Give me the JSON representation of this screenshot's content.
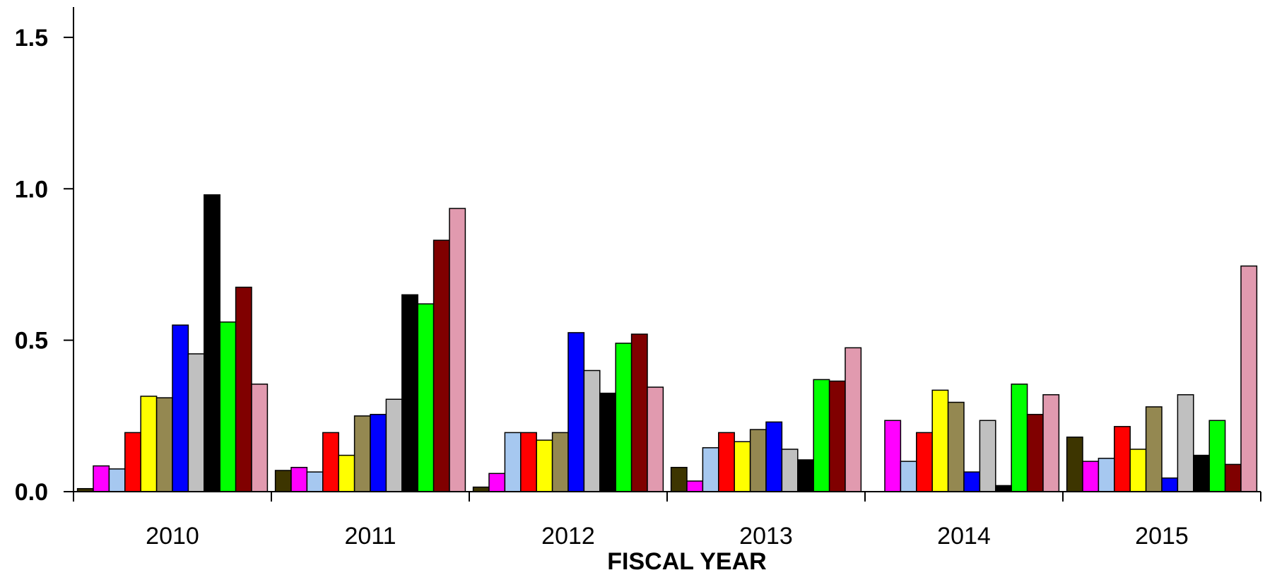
{
  "chart_data": {
    "type": "bar",
    "title": "",
    "xlabel": "FISCAL YEAR",
    "ylabel": "",
    "ylim": [
      0,
      1.6
    ],
    "yticks": [
      {
        "value": 0.0,
        "label": "0.0"
      },
      {
        "value": 0.5,
        "label": "0.5"
      },
      {
        "value": 1.0,
        "label": "1.0"
      },
      {
        "value": 1.5,
        "label": "1.5"
      }
    ],
    "grid": false,
    "legend": "none",
    "categories": [
      "2010",
      "2011",
      "2012",
      "2013",
      "2014",
      "2015"
    ],
    "series": [
      {
        "color": "#3d3500",
        "values": [
          0.01,
          0.07,
          0.015,
          0.08,
          0.0,
          0.18
        ]
      },
      {
        "color": "#ff00ff",
        "values": [
          0.085,
          0.08,
          0.06,
          0.035,
          0.235,
          0.1
        ]
      },
      {
        "color": "#a6c8f0",
        "values": [
          0.075,
          0.065,
          0.195,
          0.145,
          0.1,
          0.11
        ]
      },
      {
        "color": "#ff0000",
        "values": [
          0.195,
          0.195,
          0.195,
          0.195,
          0.195,
          0.215
        ]
      },
      {
        "color": "#ffff00",
        "values": [
          0.315,
          0.12,
          0.17,
          0.165,
          0.335,
          0.14
        ]
      },
      {
        "color": "#948851",
        "values": [
          0.31,
          0.25,
          0.195,
          0.205,
          0.295,
          0.28
        ]
      },
      {
        "color": "#0000ff",
        "values": [
          0.55,
          0.255,
          0.525,
          0.23,
          0.065,
          0.045
        ]
      },
      {
        "color": "#c0c0c0",
        "values": [
          0.455,
          0.305,
          0.4,
          0.14,
          0.235,
          0.32
        ]
      },
      {
        "color": "#000000",
        "values": [
          0.98,
          0.65,
          0.325,
          0.105,
          0.02,
          0.12
        ]
      },
      {
        "color": "#00ff00",
        "values": [
          0.56,
          0.62,
          0.49,
          0.37,
          0.355,
          0.235
        ]
      },
      {
        "color": "#800000",
        "values": [
          0.675,
          0.83,
          0.52,
          0.365,
          0.255,
          0.09
        ]
      },
      {
        "color": "#e19aaf",
        "values": [
          0.355,
          0.935,
          0.345,
          0.475,
          0.32,
          0.745
        ]
      }
    ]
  }
}
